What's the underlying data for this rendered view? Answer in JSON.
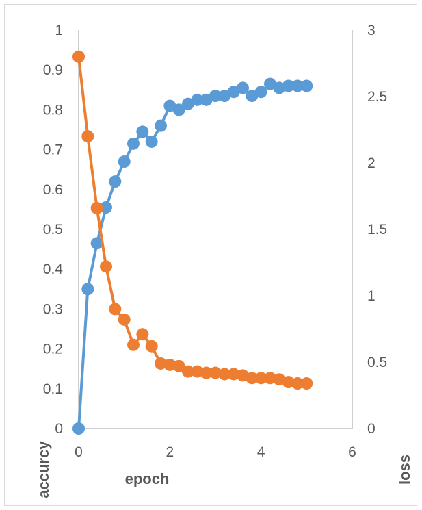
{
  "chart_data": {
    "type": "scatter",
    "xlabel": "epoch",
    "ylabel": "accurcy",
    "y2label": "loss",
    "xlim": [
      0,
      6
    ],
    "ylim": [
      0,
      1
    ],
    "y2lim": [
      0,
      3
    ],
    "xticks": [
      0,
      2,
      4,
      6
    ],
    "yticks": [
      0,
      0.1,
      0.2,
      0.3,
      0.4,
      0.5,
      0.6,
      0.7,
      0.8,
      0.9,
      1
    ],
    "y2ticks": [
      0,
      0.5,
      1,
      1.5,
      2,
      2.5,
      3
    ],
    "grid": false,
    "legend": "none",
    "series": [
      {
        "axis": "left",
        "color": "#5b9bd5",
        "x": [
          0,
          0.2,
          0.4,
          0.6,
          0.8,
          1.0,
          1.2,
          1.4,
          1.6,
          1.8,
          2.0,
          2.2,
          2.4,
          2.6,
          2.8,
          3.0,
          3.2,
          3.4,
          3.6,
          3.8,
          4.0,
          4.2,
          4.4,
          4.6,
          4.8,
          5.0
        ],
        "y": [
          0.0,
          0.35,
          0.465,
          0.555,
          0.62,
          0.67,
          0.715,
          0.745,
          0.72,
          0.76,
          0.81,
          0.8,
          0.815,
          0.825,
          0.825,
          0.835,
          0.835,
          0.845,
          0.855,
          0.835,
          0.845,
          0.865,
          0.855,
          0.86,
          0.86,
          0.86
        ]
      },
      {
        "axis": "right",
        "color": "#ed7d31",
        "x": [
          0,
          0.2,
          0.4,
          0.6,
          0.8,
          1.0,
          1.2,
          1.4,
          1.6,
          1.8,
          2.0,
          2.2,
          2.4,
          2.6,
          2.8,
          3.0,
          3.2,
          3.4,
          3.6,
          3.8,
          4.0,
          4.2,
          4.4,
          4.6,
          4.8,
          5.0
        ],
        "y": [
          2.8,
          2.2,
          1.66,
          1.22,
          0.9,
          0.82,
          0.63,
          0.71,
          0.62,
          0.49,
          0.48,
          0.47,
          0.43,
          0.43,
          0.42,
          0.42,
          0.41,
          0.41,
          0.4,
          0.38,
          0.38,
          0.38,
          0.37,
          0.35,
          0.34,
          0.34
        ]
      }
    ]
  }
}
